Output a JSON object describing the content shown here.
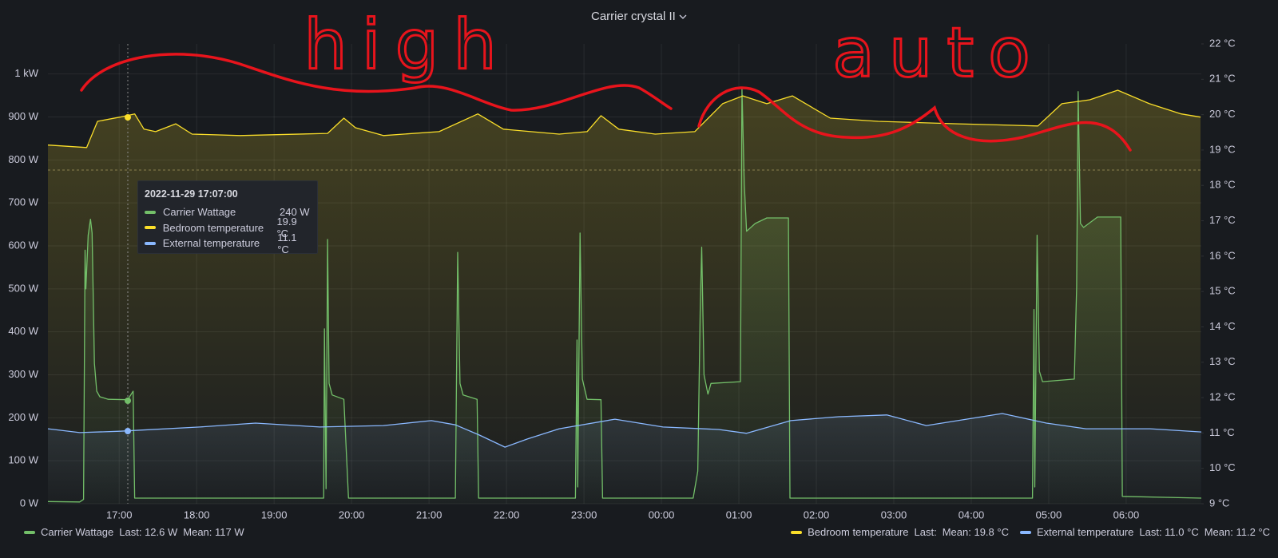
{
  "chart_data": {
    "type": "line",
    "title": "Carrier crystal II",
    "annotations": [
      "high",
      "auto"
    ],
    "xlim": [
      16.08,
      30.97
    ],
    "xticks": [
      {
        "value": 17,
        "label": "17:00"
      },
      {
        "value": 18,
        "label": "18:00"
      },
      {
        "value": 19,
        "label": "19:00"
      },
      {
        "value": 20,
        "label": "20:00"
      },
      {
        "value": 21,
        "label": "21:00"
      },
      {
        "value": 22,
        "label": "22:00"
      },
      {
        "value": 23,
        "label": "23:00"
      },
      {
        "value": 24,
        "label": "00:00"
      },
      {
        "value": 25,
        "label": "01:00"
      },
      {
        "value": 26,
        "label": "02:00"
      },
      {
        "value": 27,
        "label": "03:00"
      },
      {
        "value": 28,
        "label": "04:00"
      },
      {
        "value": 29,
        "label": "05:00"
      },
      {
        "value": 30,
        "label": "06:00"
      }
    ],
    "ylim": [
      0,
      1070
    ],
    "yticks": [
      {
        "value": 0,
        "label": "0 W"
      },
      {
        "value": 100,
        "label": "100 W"
      },
      {
        "value": 200,
        "label": "200 W"
      },
      {
        "value": 300,
        "label": "300 W"
      },
      {
        "value": 400,
        "label": "400 W"
      },
      {
        "value": 500,
        "label": "500 W"
      },
      {
        "value": 600,
        "label": "600 W"
      },
      {
        "value": 700,
        "label": "700 W"
      },
      {
        "value": 800,
        "label": "800 W"
      },
      {
        "value": 900,
        "label": "900 W"
      },
      {
        "value": 1000,
        "label": "1 kW"
      }
    ],
    "y2lim": [
      9,
      22
    ],
    "y2ticks": [
      {
        "value": 9,
        "label": "9 °C"
      },
      {
        "value": 10,
        "label": "10 °C"
      },
      {
        "value": 11,
        "label": "11 °C"
      },
      {
        "value": 12,
        "label": "12 °C"
      },
      {
        "value": 13,
        "label": "13 °C"
      },
      {
        "value": 14,
        "label": "14 °C"
      },
      {
        "value": 15,
        "label": "15 °C"
      },
      {
        "value": 16,
        "label": "16 °C"
      },
      {
        "value": 17,
        "label": "17 °C"
      },
      {
        "value": 18,
        "label": "18 °C"
      },
      {
        "value": 19,
        "label": "19 °C"
      },
      {
        "value": 20,
        "label": "20 °C"
      },
      {
        "value": 21,
        "label": "21 °C"
      },
      {
        "value": 22,
        "label": "22 °C"
      }
    ],
    "grid": true,
    "legend": "bottom",
    "series": [
      {
        "name": "Carrier Wattage",
        "color": "#73bf69",
        "stats": [
          "Last: 12.6 W",
          "Mean: 117 W"
        ],
        "x": [
          16.08,
          16.49,
          16.54,
          16.56,
          16.57,
          16.6,
          16.63,
          16.65,
          16.68,
          16.71,
          16.75,
          16.86,
          17.11,
          17.18,
          17.2,
          19.64,
          19.65,
          19.67,
          19.69,
          19.71,
          19.75,
          19.9,
          19.96,
          21.34,
          21.37,
          21.4,
          21.44,
          21.62,
          21.64,
          22.89,
          22.91,
          22.92,
          22.95,
          22.98,
          23.04,
          23.22,
          23.24,
          24.41,
          24.47,
          24.5,
          24.52,
          24.55,
          24.6,
          24.64,
          25.02,
          25.04,
          25.07,
          25.1,
          25.21,
          25.36,
          25.64,
          25.66,
          28.79,
          28.81,
          28.82,
          28.85,
          28.88,
          28.92,
          29.33,
          29.36,
          29.38,
          29.41,
          29.45,
          29.63,
          29.93,
          29.95,
          30.97
        ],
        "values": [
          5,
          4,
          10,
          590,
          500,
          625,
          662,
          630,
          327,
          262,
          249,
          243,
          242,
          262,
          13,
          13,
          407,
          35,
          615,
          280,
          253,
          243,
          13,
          13,
          585,
          280,
          253,
          243,
          13,
          13,
          381,
          39,
          630,
          290,
          243,
          242,
          13,
          13,
          76,
          448,
          597,
          300,
          255,
          280,
          284,
          968,
          745,
          634,
          652,
          665,
          665,
          13,
          13,
          452,
          39,
          625,
          308,
          284,
          290,
          504,
          959,
          652,
          643,
          667,
          667,
          17,
          13
        ]
      },
      {
        "name": "Bedroom temperature",
        "color": "#fade2a",
        "axis": "y2",
        "stats": [
          "Last:",
          "Mean: 19.8 °C"
        ],
        "x": [
          16.08,
          16.58,
          16.72,
          17.01,
          17.2,
          17.32,
          17.47,
          17.73,
          17.94,
          18.56,
          19.69,
          19.9,
          20.05,
          20.41,
          21.13,
          21.63,
          21.96,
          22.68,
          23.04,
          23.22,
          23.45,
          23.92,
          24.43,
          24.79,
          25.05,
          25.36,
          25.69,
          26.18,
          26.8,
          27.83,
          28.86,
          29.17,
          29.53,
          29.89,
          30.3,
          30.71,
          30.96
        ],
        "values": [
          19.14,
          19.07,
          19.81,
          19.93,
          20.02,
          19.59,
          19.52,
          19.74,
          19.45,
          19.41,
          19.47,
          19.9,
          19.63,
          19.41,
          19.52,
          20.02,
          19.59,
          19.45,
          19.52,
          19.97,
          19.59,
          19.45,
          19.52,
          20.31,
          20.53,
          20.31,
          20.53,
          19.9,
          19.81,
          19.74,
          19.68,
          20.31,
          20.42,
          20.69,
          20.31,
          20.02,
          19.93
        ]
      },
      {
        "name": "External temperature",
        "color": "#8ab8ff",
        "axis": "y2",
        "stats": [
          "Last: 11.0 °C",
          "Mean: 11.2 °C"
        ],
        "x": [
          16.08,
          16.49,
          17.01,
          18.04,
          18.76,
          19.59,
          20.41,
          21.03,
          21.34,
          21.65,
          21.98,
          22.27,
          22.68,
          23.4,
          24.02,
          24.74,
          25.1,
          25.67,
          26.29,
          26.91,
          27.42,
          28.4,
          28.97,
          29.48,
          30.31,
          30.97
        ],
        "values": [
          11.12,
          11.01,
          11.05,
          11.17,
          11.28,
          11.17,
          11.21,
          11.35,
          11.23,
          10.94,
          10.6,
          10.83,
          11.12,
          11.39,
          11.17,
          11.1,
          10.99,
          11.35,
          11.46,
          11.51,
          11.21,
          11.55,
          11.28,
          11.12,
          11.12,
          11.03
        ]
      }
    ],
    "tooltip": {
      "time": "2022-11-29 17:07:00",
      "rows": [
        {
          "name": "Carrier Wattage",
          "value": "240 W"
        },
        {
          "name": "Bedroom temperature",
          "value": "19.9 °C"
        },
        {
          "name": "External temperature",
          "value": "11.1 °C"
        }
      ]
    }
  }
}
